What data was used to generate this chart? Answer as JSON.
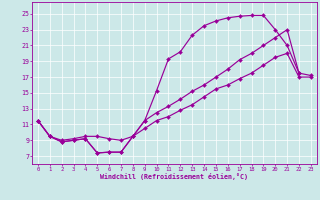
{
  "bg_color": "#cce8e8",
  "line_color": "#990099",
  "xlabel": "Windchill (Refroidissement éolien,°C)",
  "xlim": [
    -0.5,
    23.5
  ],
  "ylim": [
    6.0,
    26.5
  ],
  "xticks": [
    0,
    1,
    2,
    3,
    4,
    5,
    6,
    7,
    8,
    9,
    10,
    11,
    12,
    13,
    14,
    15,
    16,
    17,
    18,
    19,
    20,
    21,
    22,
    23
  ],
  "yticks": [
    7,
    9,
    11,
    13,
    15,
    17,
    19,
    21,
    23,
    25
  ],
  "curve1_x": [
    0,
    1,
    2,
    3,
    4,
    5,
    6,
    7,
    8,
    9,
    10,
    11,
    12,
    13,
    14,
    15,
    16,
    17,
    18,
    19,
    20,
    21,
    22
  ],
  "curve1_y": [
    11.5,
    9.5,
    8.8,
    9.0,
    9.2,
    7.4,
    7.5,
    7.5,
    9.5,
    11.5,
    15.3,
    19.3,
    20.2,
    22.3,
    23.5,
    24.1,
    24.5,
    24.7,
    24.8,
    24.8,
    23.0,
    21.0,
    17.5
  ],
  "curve2_x": [
    0,
    1,
    2,
    3,
    4,
    5,
    6,
    7,
    8,
    9,
    10,
    11,
    12,
    13,
    14,
    15,
    16,
    17,
    18,
    19,
    20,
    21,
    22,
    23
  ],
  "curve2_y": [
    11.5,
    9.5,
    8.8,
    9.0,
    9.2,
    7.4,
    7.5,
    7.5,
    9.5,
    11.5,
    12.5,
    13.3,
    14.2,
    15.2,
    16.0,
    17.0,
    18.0,
    19.2,
    20.0,
    21.0,
    22.0,
    23.0,
    17.5,
    17.2
  ],
  "curve3_x": [
    0,
    1,
    2,
    3,
    4,
    5,
    6,
    7,
    8,
    9,
    10,
    11,
    12,
    13,
    14,
    15,
    16,
    17,
    18,
    19,
    20,
    21,
    22,
    23
  ],
  "curve3_y": [
    11.5,
    9.5,
    9.0,
    9.2,
    9.5,
    9.5,
    9.2,
    9.0,
    9.5,
    10.5,
    11.5,
    12.0,
    12.8,
    13.5,
    14.5,
    15.5,
    16.0,
    16.8,
    17.5,
    18.5,
    19.5,
    20.0,
    17.0,
    17.0
  ]
}
